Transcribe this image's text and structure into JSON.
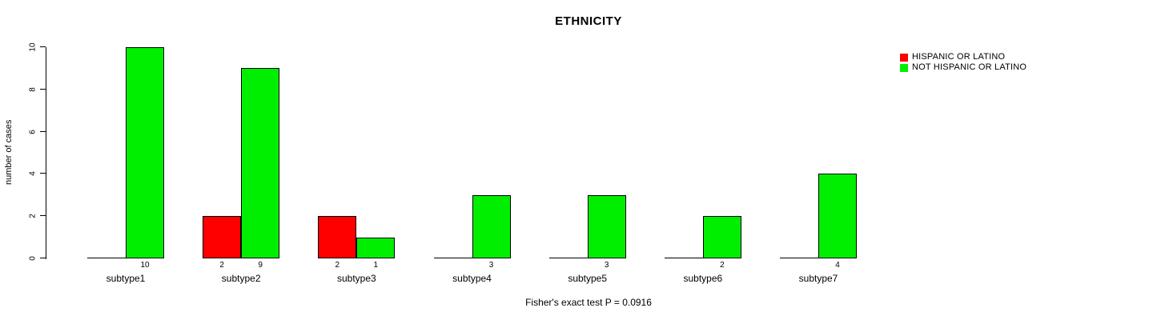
{
  "chart_data": {
    "type": "bar",
    "title": "ETHNICITY",
    "ylabel": "number of cases",
    "xlabel": "",
    "ylim": [
      0,
      10
    ],
    "yticks": [
      0,
      2,
      4,
      6,
      8,
      10
    ],
    "grid": false,
    "legend_position": "top-right",
    "categories": [
      "subtype1",
      "subtype2",
      "subtype3",
      "subtype4",
      "subtype5",
      "subtype6",
      "subtype7"
    ],
    "series": [
      {
        "name": "HISPANIC OR LATINO",
        "color": "#ff0000",
        "values": [
          0,
          2,
          2,
          0,
          0,
          0,
          0
        ]
      },
      {
        "name": "NOT HISPANIC OR LATINO",
        "color": "#00ee00",
        "values": [
          10,
          9,
          1,
          3,
          3,
          2,
          4
        ]
      }
    ],
    "bar_value_labels": [
      [
        null,
        "2",
        "2",
        null,
        null,
        null,
        null
      ],
      [
        "10",
        "9",
        "1",
        "3",
        "3",
        "2",
        "4"
      ]
    ],
    "footnote": "Fisher's exact test P = 0.0916",
    "axis_color": "#000000",
    "background_color": "#ffffff"
  }
}
